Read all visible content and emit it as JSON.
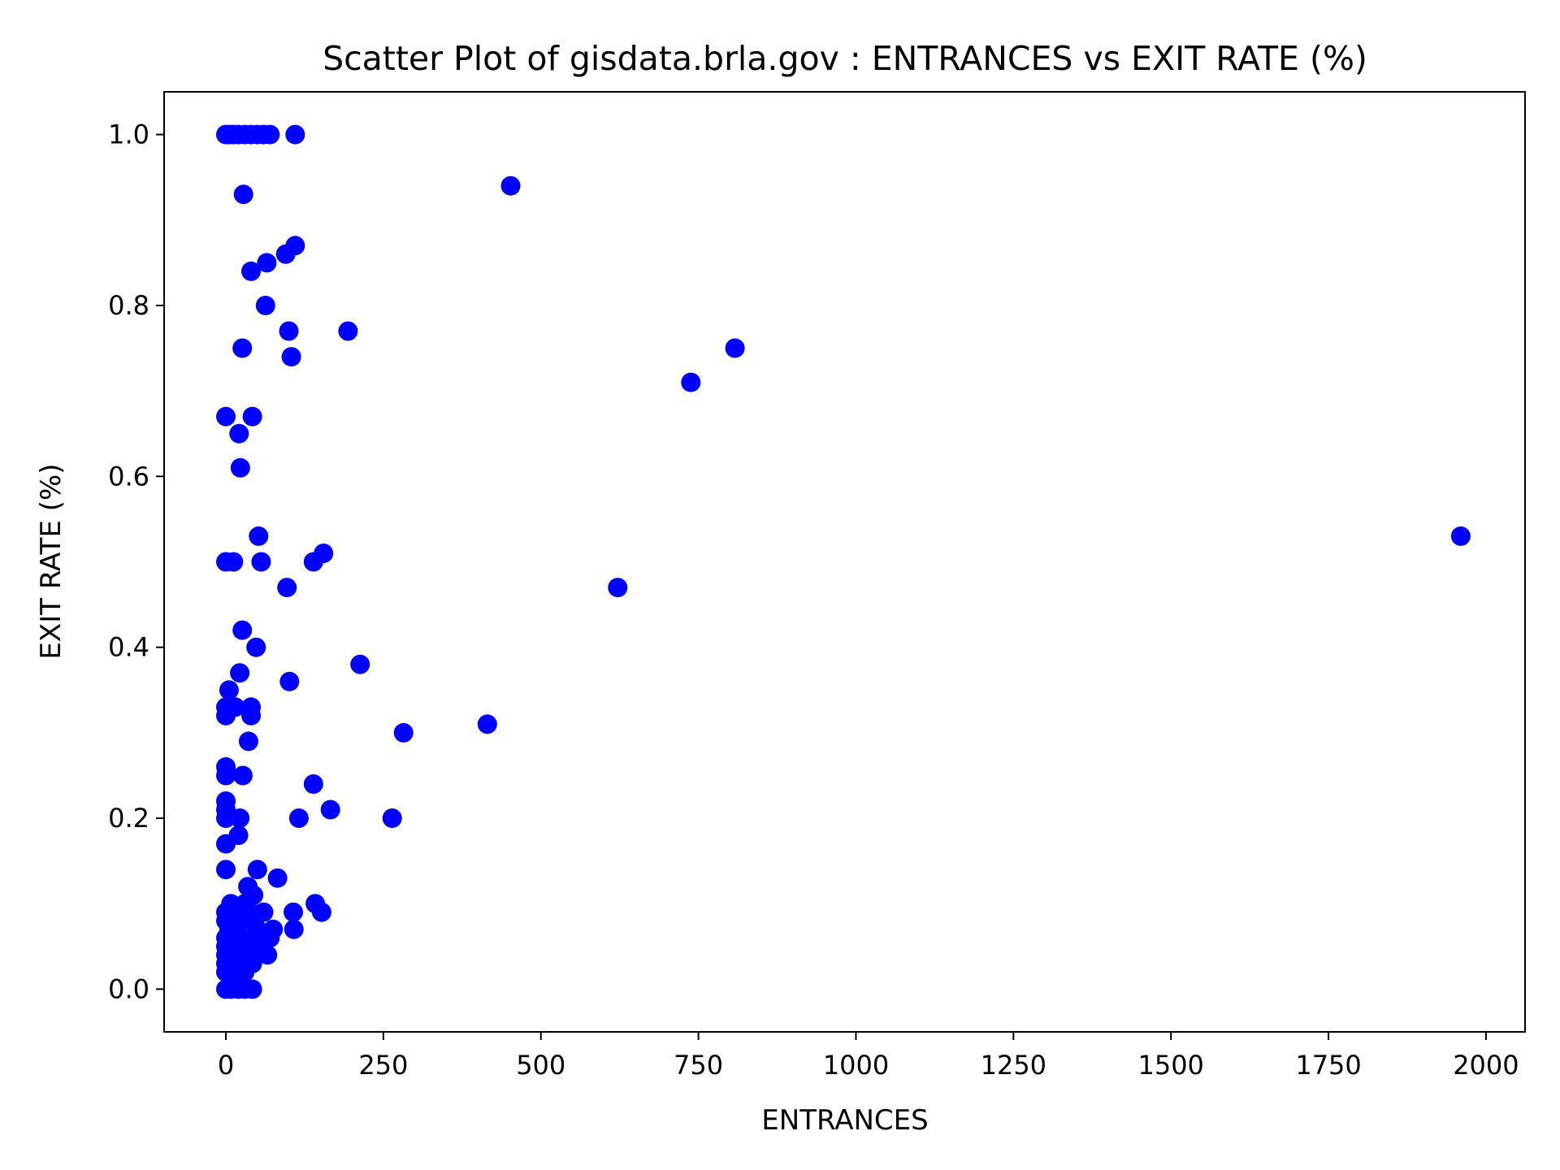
{
  "chart_data": {
    "type": "scatter",
    "title": "Scatter Plot of gisdata.brla.gov : ENTRANCES vs EXIT RATE (%)",
    "xlabel": "ENTRANCES",
    "ylabel": "EXIT RATE (%)",
    "xlim": [
      -98,
      2062
    ],
    "ylim": [
      -0.05,
      1.05
    ],
    "xticks": [
      0,
      250,
      500,
      750,
      1000,
      1250,
      1500,
      1750,
      2000
    ],
    "xtick_labels": [
      "0",
      "250",
      "500",
      "750",
      "1000",
      "1250",
      "1500",
      "1750",
      "2000"
    ],
    "yticks": [
      0.0,
      0.2,
      0.4,
      0.6,
      0.8,
      1.0
    ],
    "ytick_labels": [
      "0.0",
      "0.2",
      "0.4",
      "0.6",
      "0.8",
      "1.0"
    ],
    "grid": false,
    "marker_color": "#0000ff",
    "series": [
      {
        "points": [
          [
            0,
            1.0
          ],
          [
            5,
            1.0
          ],
          [
            12,
            1.0
          ],
          [
            20,
            1.0
          ],
          [
            30,
            1.0
          ],
          [
            40,
            1.0
          ],
          [
            50,
            1.0
          ],
          [
            60,
            1.0
          ],
          [
            70,
            1.0
          ],
          [
            110,
            1.0
          ],
          [
            28,
            0.93
          ],
          [
            452,
            0.94
          ],
          [
            40,
            0.84
          ],
          [
            65,
            0.85
          ],
          [
            95,
            0.86
          ],
          [
            110,
            0.87
          ],
          [
            63,
            0.8
          ],
          [
            100,
            0.77
          ],
          [
            194,
            0.77
          ],
          [
            104,
            0.74
          ],
          [
            26,
            0.75
          ],
          [
            738,
            0.71
          ],
          [
            808,
            0.75
          ],
          [
            0,
            0.67
          ],
          [
            42,
            0.67
          ],
          [
            21,
            0.65
          ],
          [
            23,
            0.61
          ],
          [
            52,
            0.53
          ],
          [
            1960,
            0.53
          ],
          [
            0,
            0.5
          ],
          [
            12,
            0.5
          ],
          [
            56,
            0.5
          ],
          [
            139,
            0.5
          ],
          [
            155,
            0.51
          ],
          [
            97,
            0.47
          ],
          [
            622,
            0.47
          ],
          [
            26,
            0.42
          ],
          [
            48,
            0.4
          ],
          [
            213,
            0.38
          ],
          [
            22,
            0.37
          ],
          [
            101,
            0.36
          ],
          [
            5,
            0.35
          ],
          [
            0,
            0.33
          ],
          [
            0,
            0.32
          ],
          [
            15,
            0.33
          ],
          [
            40,
            0.33
          ],
          [
            40,
            0.32
          ],
          [
            415,
            0.31
          ],
          [
            282,
            0.3
          ],
          [
            36,
            0.29
          ],
          [
            0,
            0.26
          ],
          [
            0,
            0.25
          ],
          [
            27,
            0.25
          ],
          [
            139,
            0.24
          ],
          [
            0,
            0.22
          ],
          [
            0,
            0.21
          ],
          [
            0,
            0.2
          ],
          [
            22,
            0.2
          ],
          [
            116,
            0.2
          ],
          [
            166,
            0.21
          ],
          [
            264,
            0.2
          ],
          [
            20,
            0.18
          ],
          [
            0,
            0.17
          ],
          [
            0,
            0.14
          ],
          [
            50,
            0.14
          ],
          [
            82,
            0.13
          ],
          [
            35,
            0.12
          ],
          [
            44,
            0.11
          ],
          [
            8,
            0.1
          ],
          [
            30,
            0.1
          ],
          [
            142,
            0.1
          ],
          [
            0,
            0.09
          ],
          [
            14,
            0.09
          ],
          [
            40,
            0.09
          ],
          [
            60,
            0.09
          ],
          [
            107,
            0.09
          ],
          [
            152,
            0.09
          ],
          [
            0,
            0.08
          ],
          [
            10,
            0.08
          ],
          [
            25,
            0.08
          ],
          [
            45,
            0.08
          ],
          [
            5,
            0.07
          ],
          [
            18,
            0.07
          ],
          [
            50,
            0.07
          ],
          [
            75,
            0.07
          ],
          [
            108,
            0.07
          ],
          [
            0,
            0.06
          ],
          [
            12,
            0.06
          ],
          [
            28,
            0.06
          ],
          [
            42,
            0.06
          ],
          [
            70,
            0.06
          ],
          [
            0,
            0.05
          ],
          [
            15,
            0.05
          ],
          [
            32,
            0.05
          ],
          [
            55,
            0.05
          ],
          [
            0,
            0.04
          ],
          [
            20,
            0.04
          ],
          [
            38,
            0.04
          ],
          [
            66,
            0.04
          ],
          [
            0,
            0.03
          ],
          [
            25,
            0.03
          ],
          [
            42,
            0.03
          ],
          [
            0,
            0.02
          ],
          [
            15,
            0.02
          ],
          [
            30,
            0.02
          ],
          [
            0,
            0.0
          ],
          [
            8,
            0.0
          ],
          [
            20,
            0.0
          ],
          [
            30,
            0.0
          ],
          [
            42,
            0.0
          ]
        ]
      }
    ]
  }
}
